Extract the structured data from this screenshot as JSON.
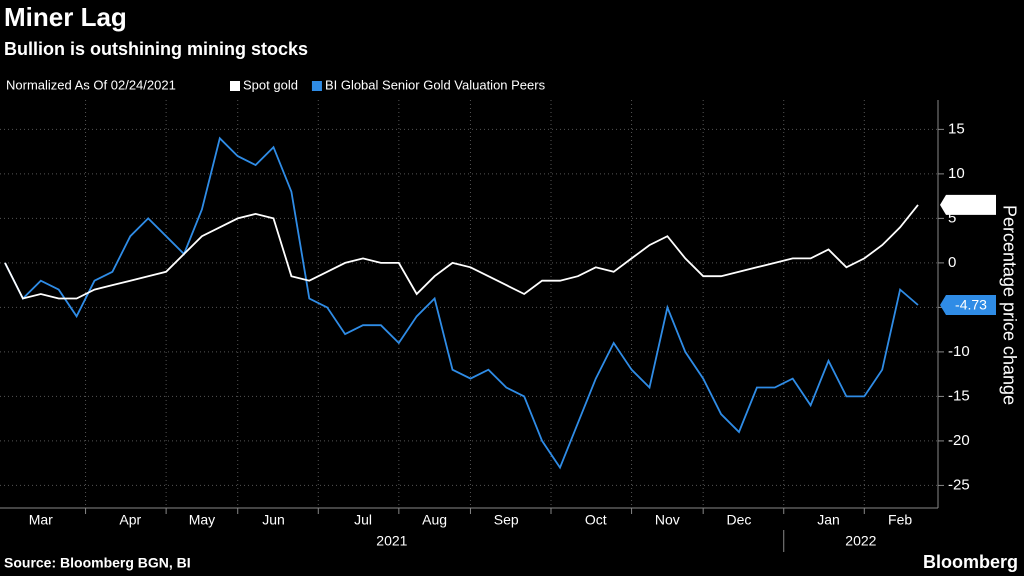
{
  "chart_data": {
    "type": "line",
    "title": "Miner Lag",
    "subtitle": "Bullion is outshining mining stocks",
    "note": "Normalized As Of 02/24/2021",
    "y_label": "Percentage price change",
    "source": "Source: Bloomberg BGN, BI",
    "brand": "Bloomberg",
    "years": [
      "2021",
      "2022"
    ],
    "categories": [
      null,
      null,
      "Mar",
      null,
      null,
      null,
      null,
      "Apr",
      null,
      null,
      null,
      "May",
      null,
      null,
      null,
      "Jun",
      null,
      null,
      null,
      null,
      "Jul",
      null,
      null,
      null,
      "Aug",
      null,
      null,
      null,
      "Sep",
      null,
      null,
      null,
      null,
      "Oct",
      null,
      null,
      null,
      "Nov",
      null,
      null,
      null,
      "Dec",
      null,
      null,
      null,
      null,
      "Jan",
      null,
      null,
      null,
      "Feb",
      null
    ],
    "series": [
      {
        "name": "Spot gold",
        "color": "#ffffff",
        "values": [
          0,
          -4,
          -3.5,
          -4,
          -4,
          -3,
          -2.5,
          -2,
          -1.5,
          -1,
          1,
          3,
          4,
          5,
          5.5,
          5,
          -1.5,
          -2,
          -1,
          0,
          0.5,
          0,
          0,
          -3.5,
          -1.5,
          0,
          -0.5,
          -1.5,
          -2.5,
          -3.5,
          -2,
          -2,
          -1.5,
          -0.5,
          -1,
          0.5,
          2,
          3,
          0.5,
          -1.5,
          -1.5,
          -1,
          -0.5,
          0,
          0.5,
          0.5,
          1.5,
          -0.5,
          0.5,
          2,
          4,
          6.52
        ]
      },
      {
        "name": "BI Global Senior Gold Valuation Peers",
        "color": "#2f8ce6",
        "values": [
          0,
          -4,
          -2,
          -3,
          -6,
          -2,
          -1,
          3,
          5,
          3,
          1,
          6,
          14,
          12,
          11,
          13,
          8,
          -4,
          -5,
          -8,
          -7,
          -7,
          -9,
          -6,
          -4,
          -12,
          -13,
          -12,
          -14,
          -15,
          -20,
          -23,
          -18,
          -13,
          -9,
          -12,
          -14,
          -5,
          -10,
          -13,
          -17,
          -19,
          -14,
          -14,
          -13,
          -16,
          -11,
          -15,
          -15,
          -12,
          -3,
          -4.73
        ]
      }
    ],
    "ylim": [
      -27.2,
      18.3
    ],
    "yticks": [
      15,
      10,
      5,
      0,
      -5,
      -10,
      -15,
      -20,
      -25
    ],
    "grid": true
  }
}
